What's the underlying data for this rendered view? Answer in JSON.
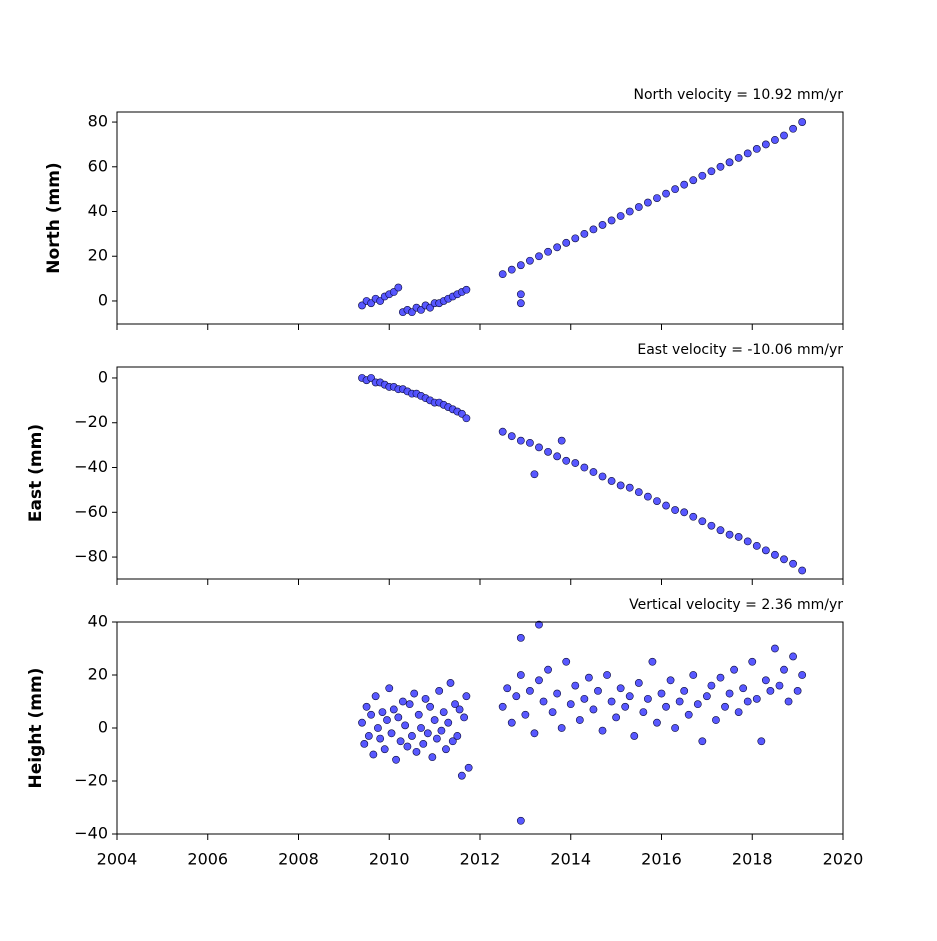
{
  "chart_data": [
    {
      "type": "scatter",
      "title": "North velocity = 10.92 mm/yr",
      "ylabel": "North (mm)",
      "color": "#4f4fff",
      "edgecolor": "#0a0a3a",
      "xlim": [
        2004,
        2020
      ],
      "ylim": [
        -10.3,
        84.5
      ],
      "yticks": [
        0,
        20,
        40,
        60,
        80
      ],
      "x": [
        2009.4,
        2009.5,
        2009.6,
        2009.7,
        2009.8,
        2009.9,
        2010,
        2010.1,
        2010.2,
        2010.3,
        2010.4,
        2010.5,
        2010.6,
        2010.7,
        2010.8,
        2010.9,
        2011,
        2011.1,
        2011.2,
        2011.3,
        2011.4,
        2011.5,
        2011.6,
        2011.7,
        2012.5,
        2012.7,
        2012.9,
        2013.1,
        2013.3,
        2013.5,
        2013.7,
        2013.9,
        2014.1,
        2014.3,
        2014.5,
        2014.7,
        2014.9,
        2015.1,
        2015.3,
        2015.5,
        2015.7,
        2015.9,
        2016.1,
        2016.3,
        2016.5,
        2016.7,
        2016.9,
        2017.1,
        2017.3,
        2017.5,
        2017.7,
        2017.9,
        2018.1,
        2018.3,
        2018.5,
        2018.7,
        2018.9,
        2019.1,
        2012.9,
        2012.9
      ],
      "y": [
        -2,
        0,
        -1,
        1,
        0,
        2,
        3,
        4,
        6,
        -5,
        -4,
        -5,
        -3,
        -4,
        -2,
        -3,
        -1,
        -1,
        0,
        1,
        2,
        3,
        4,
        5,
        12,
        14,
        16,
        18,
        20,
        22,
        24,
        26,
        28,
        30,
        32,
        34,
        36,
        38,
        40,
        42,
        44,
        46,
        48,
        50,
        52,
        54,
        56,
        58,
        60,
        62,
        64,
        66,
        68,
        70,
        72,
        74,
        77,
        80,
        3,
        -1
      ]
    },
    {
      "type": "scatter",
      "title": "East velocity = -10.06 mm/yr",
      "ylabel": "East (mm)",
      "color": "#4f4fff",
      "edgecolor": "#0a0a3a",
      "xlim": [
        2004,
        2020
      ],
      "ylim": [
        -89.8,
        4.9
      ],
      "yticks": [
        0,
        {
          "value": -20,
          "label": "−20"
        },
        {
          "value": -40,
          "label": "−40"
        },
        {
          "value": -60,
          "label": "−60"
        },
        {
          "value": -80,
          "label": "−80"
        }
      ],
      "x": [
        2009.4,
        2009.5,
        2009.6,
        2009.7,
        2009.8,
        2009.9,
        2010,
        2010.1,
        2010.2,
        2010.3,
        2010.4,
        2010.5,
        2010.6,
        2010.7,
        2010.8,
        2010.9,
        2011,
        2011.1,
        2011.2,
        2011.3,
        2011.4,
        2011.5,
        2011.6,
        2011.7,
        2012.5,
        2012.7,
        2012.9,
        2013.1,
        2013.3,
        2013.5,
        2013.7,
        2013.9,
        2014.1,
        2014.3,
        2014.5,
        2014.7,
        2014.9,
        2015.1,
        2015.3,
        2015.5,
        2015.7,
        2015.9,
        2016.1,
        2016.3,
        2016.5,
        2016.7,
        2016.9,
        2017.1,
        2017.3,
        2017.5,
        2017.7,
        2017.9,
        2018.1,
        2018.3,
        2018.5,
        2018.7,
        2018.9,
        2019.1,
        2013.2,
        2013.8
      ],
      "y": [
        0,
        -1,
        0,
        -2,
        -2,
        -3,
        -4,
        -4,
        -5,
        -5,
        -6,
        -7,
        -7,
        -8,
        -9,
        -10,
        -11,
        -11,
        -12,
        -13,
        -14,
        -15,
        -16,
        -18,
        -24,
        -26,
        -28,
        -29,
        -31,
        -33,
        -35,
        -37,
        -38,
        -40,
        -42,
        -44,
        -46,
        -48,
        -49,
        -51,
        -53,
        -55,
        -57,
        -59,
        -60,
        -62,
        -64,
        -66,
        -68,
        -70,
        -71,
        -73,
        -75,
        -77,
        -79,
        -81,
        -83,
        -86,
        -43,
        -28
      ]
    },
    {
      "type": "scatter",
      "title": "Vertical velocity = 2.36 mm/yr",
      "ylabel": "Height (mm)",
      "color": "#4f4fff",
      "edgecolor": "#0a0a3a",
      "xlim": [
        2004,
        2020
      ],
      "xticks": [
        2004,
        2006,
        2008,
        2010,
        2012,
        2014,
        2016,
        2018,
        2020
      ],
      "ylim": [
        -40,
        40
      ],
      "yticks": [
        {
          "value": -40,
          "label": "−40"
        },
        {
          "value": -20,
          "label": "−20"
        },
        0,
        20,
        40
      ],
      "x": [
        2009.4,
        2009.45,
        2009.5,
        2009.55,
        2009.6,
        2009.65,
        2009.7,
        2009.75,
        2009.8,
        2009.85,
        2009.9,
        2009.95,
        2010,
        2010.05,
        2010.1,
        2010.15,
        2010.2,
        2010.25,
        2010.3,
        2010.35,
        2010.4,
        2010.45,
        2010.5,
        2010.55,
        2010.6,
        2010.65,
        2010.7,
        2010.75,
        2010.8,
        2010.85,
        2010.9,
        2010.95,
        2011,
        2011.05,
        2011.1,
        2011.15,
        2011.2,
        2011.25,
        2011.3,
        2011.35,
        2011.4,
        2011.45,
        2011.5,
        2011.55,
        2011.6,
        2011.65,
        2011.7,
        2011.75,
        2012.5,
        2012.6,
        2012.7,
        2012.8,
        2012.9,
        2013,
        2013.1,
        2013.2,
        2013.3,
        2013.4,
        2013.5,
        2013.6,
        2013.7,
        2013.8,
        2013.9,
        2014,
        2014.1,
        2014.2,
        2014.3,
        2014.4,
        2014.5,
        2014.6,
        2014.7,
        2014.8,
        2014.9,
        2015,
        2015.1,
        2015.2,
        2015.3,
        2015.4,
        2015.5,
        2015.6,
        2015.7,
        2015.8,
        2015.9,
        2016,
        2016.1,
        2016.2,
        2016.3,
        2016.4,
        2016.5,
        2016.6,
        2016.7,
        2016.8,
        2016.9,
        2017,
        2017.1,
        2017.2,
        2017.3,
        2017.4,
        2017.5,
        2017.6,
        2017.7,
        2017.8,
        2017.9,
        2018,
        2018.1,
        2018.2,
        2018.3,
        2018.4,
        2018.5,
        2018.6,
        2018.7,
        2018.8,
        2018.9,
        2019,
        2019.1,
        2012.9,
        2012.9,
        2013.3
      ],
      "y": [
        2,
        -6,
        8,
        -3,
        5,
        -10,
        12,
        0,
        -4,
        6,
        -8,
        3,
        15,
        -2,
        7,
        -12,
        4,
        -5,
        10,
        1,
        -7,
        9,
        -3,
        13,
        -9,
        5,
        0,
        -6,
        11,
        -2,
        8,
        -11,
        3,
        -4,
        14,
        -1,
        6,
        -8,
        2,
        17,
        -5,
        9,
        -3,
        7,
        -18,
        4,
        12,
        -15,
        8,
        15,
        2,
        12,
        20,
        5,
        14,
        -2,
        18,
        10,
        22,
        6,
        13,
        0,
        25,
        9,
        16,
        3,
        11,
        19,
        7,
        14,
        -1,
        20,
        10,
        4,
        15,
        8,
        12,
        -3,
        17,
        6,
        11,
        25,
        2,
        13,
        8,
        18,
        0,
        10,
        14,
        5,
        20,
        9,
        -5,
        12,
        16,
        3,
        19,
        8,
        13,
        22,
        6,
        15,
        10,
        25,
        11,
        -5,
        18,
        14,
        30,
        16,
        22,
        10,
        27,
        14,
        20,
        -35,
        34,
        39
      ]
    }
  ]
}
